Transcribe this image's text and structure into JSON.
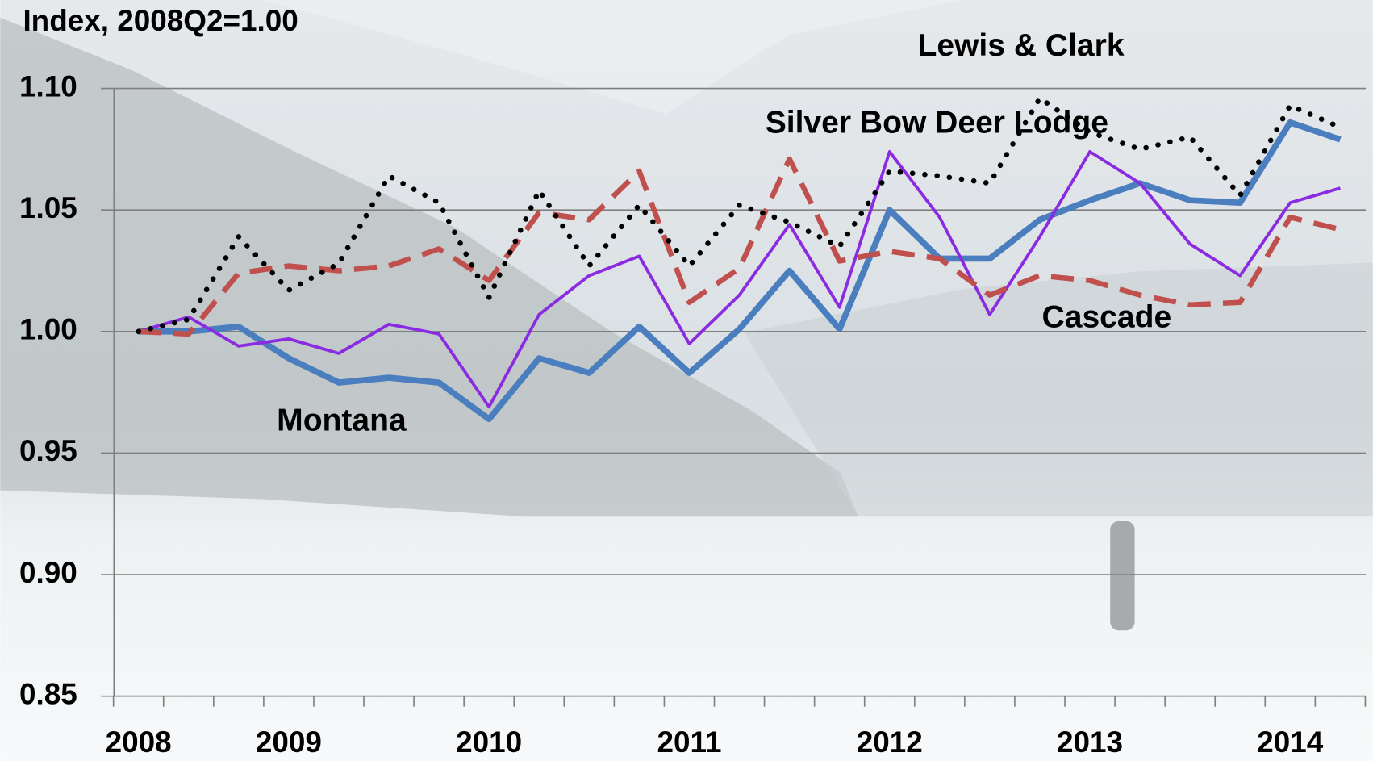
{
  "chart_data": {
    "type": "line",
    "title": "Index, 2008Q2=1.00",
    "categories": [
      "2008",
      null,
      null,
      "2009",
      null,
      null,
      null,
      "2010",
      null,
      null,
      null,
      "2011",
      null,
      null,
      null,
      "2012",
      null,
      null,
      null,
      "2013",
      null,
      null,
      null,
      "2014",
      null
    ],
    "series": [
      {
        "name": "Montana",
        "color": "#4a7ebf",
        "style": "solid",
        "width": 7,
        "values": [
          1.0,
          1.0,
          1.002,
          0.989,
          0.979,
          0.981,
          0.979,
          0.964,
          0.989,
          0.983,
          1.002,
          0.983,
          1.001,
          1.025,
          1.001,
          1.05,
          1.03,
          1.03,
          1.046,
          1.054,
          1.061,
          1.054,
          1.053,
          1.086,
          1.079
        ]
      },
      {
        "name": "Silver Bow Deer Lodge",
        "color": "#8a2be2",
        "style": "solid",
        "width": 3.5,
        "values": [
          1.0,
          1.006,
          0.994,
          0.997,
          0.991,
          1.003,
          0.999,
          0.969,
          1.007,
          1.023,
          1.031,
          0.995,
          1.015,
          1.044,
          1.01,
          1.074,
          1.047,
          1.007,
          1.039,
          1.074,
          1.061,
          1.036,
          1.023,
          1.053,
          1.059
        ]
      },
      {
        "name": "Cascade",
        "color": "#c0504d",
        "style": "dashed",
        "width": 6,
        "values": [
          1.0,
          0.999,
          1.024,
          1.027,
          1.025,
          1.027,
          1.034,
          1.021,
          1.049,
          1.046,
          1.066,
          1.012,
          1.026,
          1.071,
          1.029,
          1.033,
          1.03,
          1.015,
          1.023,
          1.021,
          1.015,
          1.011,
          1.012,
          1.047,
          1.042
        ]
      },
      {
        "name": "Lewis & Clark",
        "color": "#000000",
        "style": "dotted",
        "width": 6,
        "values": [
          1.0,
          1.005,
          1.039,
          1.017,
          1.028,
          1.064,
          1.053,
          1.014,
          1.058,
          1.027,
          1.052,
          1.027,
          1.052,
          1.045,
          1.035,
          1.066,
          1.064,
          1.061,
          1.096,
          1.082,
          1.075,
          1.08,
          1.056,
          1.093,
          1.084
        ]
      }
    ],
    "ylim": [
      0.85,
      1.1
    ],
    "yticks": [
      0.85,
      {
        "value": 0.9,
        "label": "0.90"
      },
      0.95,
      {
        "value": 1,
        "label": "1.00"
      },
      1.05,
      {
        "value": 1.1,
        "label": "1.10"
      }
    ],
    "grid": true
  }
}
